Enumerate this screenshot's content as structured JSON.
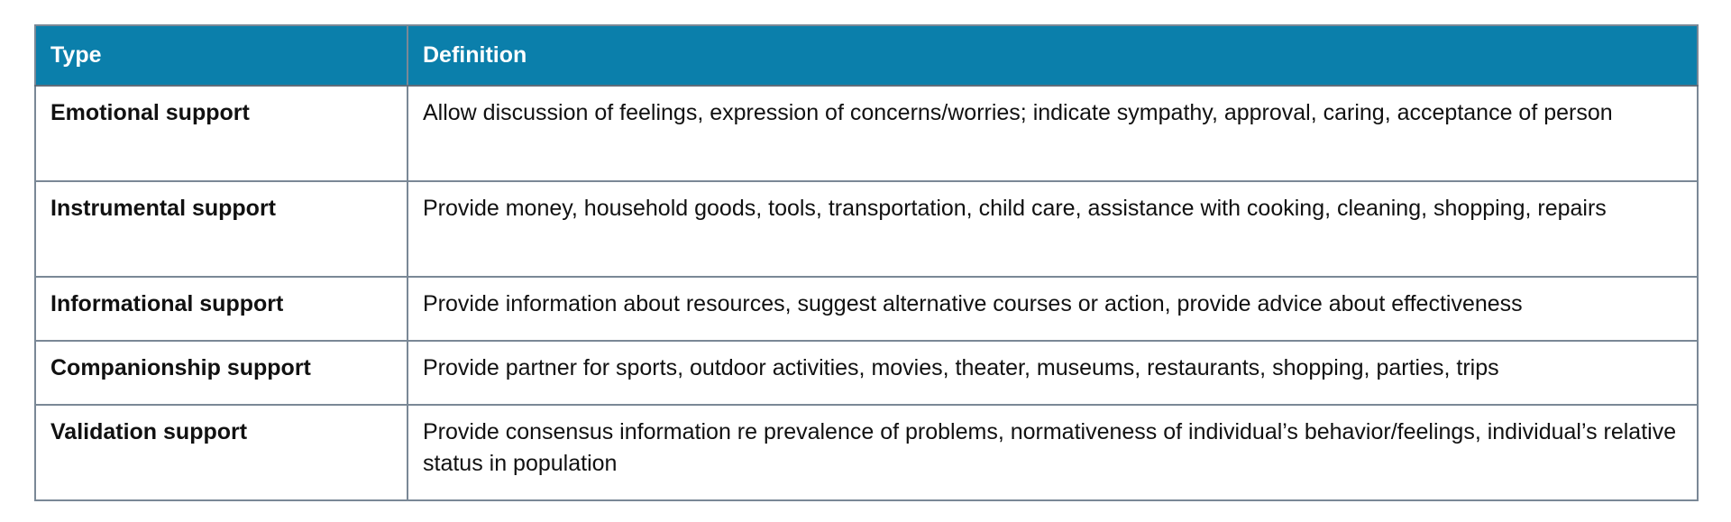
{
  "table": {
    "headers": [
      "Type",
      "Definition"
    ],
    "rows": [
      {
        "type": "Emotional support",
        "definition": "Allow discussion of feelings, expression of concerns/worries; indicate sympathy, approval, caring, acceptance of person"
      },
      {
        "type": "Instrumental support",
        "definition": "Provide money, household goods, tools, transportation, child care, assistance with cooking, cleaning, shopping, repairs"
      },
      {
        "type": "Informational support",
        "definition": "Provide information about resources, suggest alternative courses or action, provide advice about effectiveness"
      },
      {
        "type": "Companionship support",
        "definition": "Provide partner for sports, outdoor activities, movies, theater, museums, restaurants, shopping, parties, trips"
      },
      {
        "type": "Validation support",
        "definition": "Provide consensus information re prevalence of problems, normativeness of individual’s behavior/feelings, individual’s relative status in population"
      }
    ]
  },
  "colors": {
    "header_background": "#0b7fab",
    "header_text": "#ffffff",
    "border": "#7a8896",
    "body_text": "#111111"
  }
}
